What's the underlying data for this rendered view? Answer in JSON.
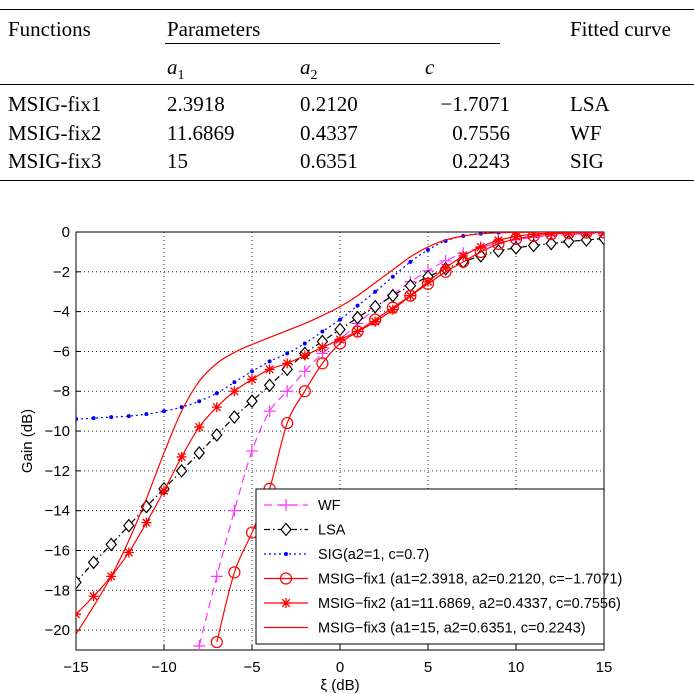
{
  "table": {
    "headers": {
      "functions": "Functions",
      "parameters": "Parameters",
      "fitted": "Fitted curve",
      "a1_base": "a",
      "a1_sub": "1",
      "a2_base": "a",
      "a2_sub": "2",
      "c": "c"
    },
    "rows": [
      {
        "name": "MSIG-fix1",
        "a1": "2.3918",
        "a2": "0.2120",
        "c": "−1.7071",
        "curve": "LSA"
      },
      {
        "name": "MSIG-fix2",
        "a1": "11.6869",
        "a2": "0.4337",
        "c": "0.7556",
        "curve": "WF"
      },
      {
        "name": "MSIG-fix3",
        "a1": "15",
        "a2": "0.6351",
        "c": "0.2243",
        "curve": "SIG"
      }
    ]
  },
  "chart_data": {
    "type": "line",
    "xlabel": "ξ (dB)",
    "ylabel": "Gain (dB)",
    "xlim": [
      -15,
      15
    ],
    "ylim": [
      -21,
      0
    ],
    "xticks": [
      -15,
      -10,
      -5,
      0,
      5,
      10,
      15
    ],
    "yticks": [
      0,
      -2,
      -4,
      -6,
      -8,
      -10,
      -12,
      -14,
      -16,
      -18,
      -20
    ],
    "grid": "dotted",
    "legend_position": "bottom-right",
    "x": [
      -15,
      -14,
      -13,
      -12,
      -11,
      -10,
      -9,
      -8,
      -7,
      -6,
      -5,
      -4,
      -3,
      -2,
      -1,
      0,
      1,
      2,
      3,
      4,
      5,
      6,
      7,
      8,
      9,
      10,
      11,
      12,
      13,
      14,
      15
    ],
    "series": [
      {
        "name": "WF",
        "color": "#ff33ff",
        "dash": "8,5",
        "marker": "plus",
        "values": [
          null,
          null,
          null,
          null,
          null,
          null,
          null,
          -20.8,
          -17.3,
          -14.0,
          -11.0,
          -9.0,
          -8.0,
          -7.0,
          -6.1,
          -5.4,
          -4.6,
          -3.85,
          -3.15,
          -2.5,
          -1.95,
          -1.45,
          -1.07,
          -0.78,
          -0.55,
          -0.39,
          -0.27,
          -0.19,
          -0.13,
          -0.09,
          -0.06
        ]
      },
      {
        "name": "LSA",
        "color": "#000000",
        "dash": "6,3,1.5,3",
        "marker": "diamond",
        "values": [
          -17.6,
          -16.6,
          -15.7,
          -14.75,
          -13.8,
          -12.9,
          -12.0,
          -11.1,
          -10.2,
          -9.3,
          -8.5,
          -7.7,
          -6.9,
          -6.1,
          -5.5,
          -4.9,
          -4.3,
          -3.75,
          -3.2,
          -2.7,
          -2.25,
          -1.85,
          -1.5,
          -1.2,
          -0.95,
          -0.8,
          -0.68,
          -0.58,
          -0.48,
          -0.4,
          -0.33
        ]
      },
      {
        "name": "SIG(a2=1, c=0.7)",
        "color": "#0000ff",
        "dash": "2,3",
        "marker": "dot",
        "values": [
          -9.4,
          -9.35,
          -9.3,
          -9.25,
          -9.15,
          -9.0,
          -8.8,
          -8.5,
          -8.1,
          -7.55,
          -7.0,
          -6.5,
          -6.1,
          -5.6,
          -5.0,
          -4.4,
          -3.7,
          -3.0,
          -2.25,
          -1.5,
          -0.9,
          -0.45,
          -0.2,
          -0.08,
          -0.03,
          -0.01,
          0,
          0,
          0,
          0,
          0
        ]
      },
      {
        "name": "MSIG−fix1 (a1=2.3918, a2=0.2120, c=−1.7071)",
        "color": "#ff0000",
        "dash": "",
        "marker": "circle",
        "values": [
          null,
          null,
          null,
          null,
          null,
          null,
          null,
          null,
          -20.6,
          -17.1,
          -15.1,
          -12.9,
          -9.6,
          -8.0,
          -6.6,
          -5.6,
          -5.0,
          -4.4,
          -3.8,
          -3.2,
          -2.6,
          -2.0,
          -1.5,
          -1.0,
          -0.6,
          -0.35,
          -0.2,
          -0.11,
          -0.06,
          -0.03,
          -0.02
        ]
      },
      {
        "name": "MSIG−fix2 (a1=11.6869, a2=0.4337, c=0.7556)",
        "color": "#ff0000",
        "dash": "",
        "marker": "star",
        "values": [
          -19.2,
          -18.3,
          -17.3,
          -16.1,
          -14.6,
          -13.0,
          -11.3,
          -9.8,
          -8.8,
          -8.0,
          -7.4,
          -6.9,
          -6.6,
          -6.2,
          -5.8,
          -5.4,
          -5.0,
          -4.5,
          -3.9,
          -3.2,
          -2.5,
          -1.8,
          -1.2,
          -0.75,
          -0.42,
          -0.22,
          -0.11,
          -0.06,
          -0.03,
          -0.01,
          0
        ]
      },
      {
        "name": "MSIG−fix3 (a1=15, a2=0.6351, c=0.2243)",
        "color": "#ff0000",
        "dash": "",
        "marker": "none",
        "values": [
          -20.2,
          -18.8,
          -17.3,
          -15.5,
          -13.4,
          -11.1,
          -9.0,
          -7.5,
          -6.6,
          -6.05,
          -5.65,
          -5.3,
          -4.95,
          -4.6,
          -4.2,
          -3.75,
          -3.2,
          -2.55,
          -1.9,
          -1.25,
          -0.75,
          -0.4,
          -0.2,
          -0.09,
          -0.04,
          -0.02,
          -0.01,
          0,
          0,
          0,
          0
        ]
      }
    ]
  }
}
